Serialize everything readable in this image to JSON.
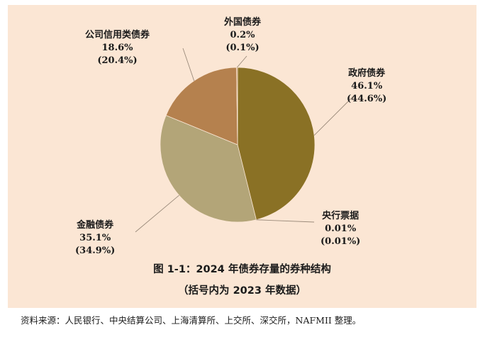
{
  "chart_data": {
    "type": "pie",
    "title": "图 1-1：2024 年债券存量的券种结构",
    "subtitle": "（括号内为 2023 年数据）",
    "slices": [
      {
        "name": "政府债券",
        "value": 46.1,
        "label": "46.1%",
        "prev_label": "(44.6%)",
        "color": "#8a7125"
      },
      {
        "name": "央行票据",
        "value": 0.01,
        "label": "0.01%",
        "prev_label": "(0.01%)",
        "color": "#8a7125"
      },
      {
        "name": "金融债券",
        "value": 35.1,
        "label": "35.1%",
        "prev_label": "(34.9%)",
        "color": "#b3a578"
      },
      {
        "name": "公司信用类债券",
        "value": 18.6,
        "label": "18.6%",
        "prev_label": "(20.4%)",
        "color": "#b5814e"
      },
      {
        "name": "外国债券",
        "value": 0.2,
        "label": "0.2%",
        "prev_label": "(0.1%)",
        "color": "#b5814e"
      }
    ],
    "background": "#fbe6d4"
  },
  "footer": "资料来源：人民银行、中央结算公司、上海清算所、上交所、深交所，NAFMII 整理。"
}
